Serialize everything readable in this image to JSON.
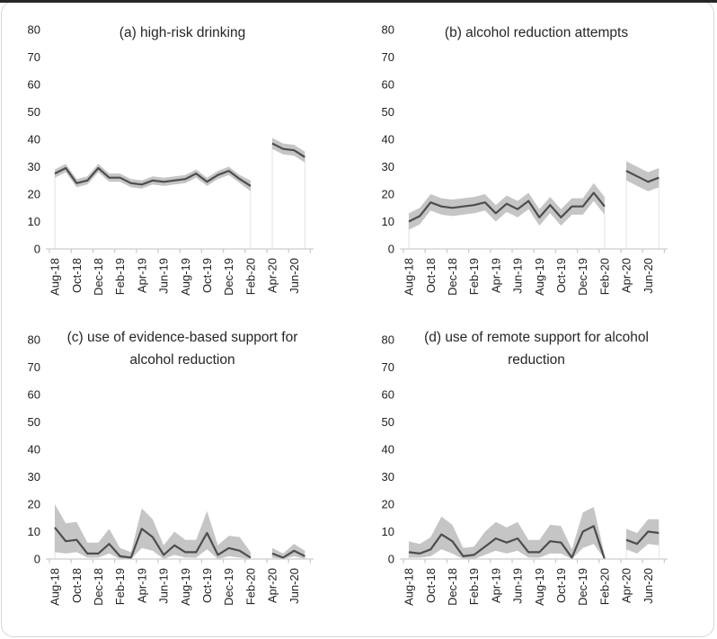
{
  "page": {
    "background": "#ffffff",
    "top_strip_color": "#262626",
    "card_border_color": "#d6d6d6",
    "line_color": "#4d4d4d",
    "band_color": "#c5c5c5",
    "axis_color": "#cccccc",
    "dropline_color": "#e4e4e4"
  },
  "chart_data": [
    {
      "id": "a",
      "type": "line",
      "title": "(a) high-risk drinking",
      "title_lines": [
        "(a) high-risk drinking"
      ],
      "ylim": [
        0,
        80
      ],
      "yticks": [
        0,
        10,
        20,
        30,
        40,
        50,
        60,
        70,
        80
      ],
      "x_tick_labels": [
        "Aug-18",
        "Oct-18",
        "Dec-18",
        "Feb-19",
        "Apr-19",
        "Jun-19",
        "Aug-19",
        "Oct-19",
        "Dec-19",
        "Feb-20",
        "Apr-20",
        "Jun-20"
      ],
      "months": [
        "Aug-18",
        "Sep-18",
        "Oct-18",
        "Nov-18",
        "Dec-18",
        "Jan-19",
        "Feb-19",
        "Mar-19",
        "Apr-19",
        "May-19",
        "Jun-19",
        "Jul-19",
        "Aug-19",
        "Sep-19",
        "Oct-19",
        "Nov-19",
        "Dec-19",
        "Jan-20",
        "Feb-20",
        "Mar-20",
        "Apr-20",
        "May-20",
        "Jun-20",
        "Jul-20"
      ],
      "values": [
        27.5,
        29.5,
        24,
        25,
        29.5,
        26,
        26,
        24,
        23.5,
        25,
        24.5,
        25,
        25.5,
        27.5,
        24.5,
        27,
        28.5,
        25.5,
        23,
        null,
        38.5,
        36.5,
        36,
        33.5
      ],
      "upper": [
        29,
        31,
        25.5,
        26.5,
        31,
        27.5,
        27.5,
        25.5,
        25,
        26.5,
        26,
        26.5,
        27,
        29,
        26,
        28.5,
        30,
        27,
        25,
        null,
        40.5,
        38.5,
        38,
        35.5
      ],
      "lower": [
        26,
        28,
        22.5,
        23.5,
        28,
        24.5,
        24.5,
        22.5,
        22,
        23.5,
        23,
        23.5,
        24,
        26,
        23,
        25.5,
        27,
        24,
        21,
        null,
        36.5,
        34.5,
        34,
        31.5
      ],
      "legend": "none",
      "grid": false
    },
    {
      "id": "b",
      "type": "line",
      "title": "(b) alcohol reduction attempts",
      "title_lines": [
        "(b) alcohol reduction attempts"
      ],
      "ylim": [
        0,
        80
      ],
      "yticks": [
        0,
        10,
        20,
        30,
        40,
        50,
        60,
        70,
        80
      ],
      "x_tick_labels": [
        "Aug-18",
        "Oct-18",
        "Dec-18",
        "Feb-19",
        "Apr-19",
        "Jun-19",
        "Aug-19",
        "Oct-19",
        "Dec-19",
        "Feb-20",
        "Apr-20",
        "Jun-20"
      ],
      "months": [
        "Aug-18",
        "Sep-18",
        "Oct-18",
        "Nov-18",
        "Dec-18",
        "Jan-19",
        "Feb-19",
        "Mar-19",
        "Apr-19",
        "May-19",
        "Jun-19",
        "Jul-19",
        "Aug-19",
        "Sep-19",
        "Oct-19",
        "Nov-19",
        "Dec-19",
        "Jan-20",
        "Feb-20",
        "Mar-20",
        "Apr-20",
        "May-20",
        "Jun-20",
        "Jul-20"
      ],
      "values": [
        10,
        12,
        17,
        15.5,
        15,
        15.5,
        16,
        17,
        13,
        16.5,
        14.5,
        17.5,
        11.5,
        16,
        11.5,
        15.5,
        15.5,
        20.5,
        15.5,
        null,
        28.5,
        26.5,
        24.5,
        26
      ],
      "upper": [
        13,
        15,
        20,
        18.5,
        18,
        18.5,
        19,
        20,
        16,
        19.5,
        17.5,
        20.5,
        14.5,
        19,
        14.5,
        18.5,
        18.5,
        24,
        19,
        null,
        32,
        30,
        28,
        29.5
      ],
      "lower": [
        7,
        9,
        14,
        12.5,
        12,
        12.5,
        13,
        14,
        10,
        13.5,
        11.5,
        14.5,
        8.5,
        13,
        8.5,
        12.5,
        12.5,
        17.5,
        12.5,
        null,
        25,
        23,
        21,
        22.5
      ],
      "legend": "none",
      "grid": false
    },
    {
      "id": "c",
      "type": "line",
      "title": "(c) use of evidence-based support for alcohol reduction",
      "title_lines": [
        "(c) use of evidence-based support for",
        "alcohol reduction"
      ],
      "ylim": [
        0,
        80
      ],
      "yticks": [
        0,
        10,
        20,
        30,
        40,
        50,
        60,
        70,
        80
      ],
      "x_tick_labels": [
        "Aug-18",
        "Oct-18",
        "Dec-18",
        "Feb-19",
        "Apr-19",
        "Jun-19",
        "Aug-19",
        "Oct-19",
        "Dec-19",
        "Feb-20",
        "Apr-20",
        "Jun-20"
      ],
      "months": [
        "Aug-18",
        "Sep-18",
        "Oct-18",
        "Nov-18",
        "Dec-18",
        "Jan-19",
        "Feb-19",
        "Mar-19",
        "Apr-19",
        "May-19",
        "Jun-19",
        "Jul-19",
        "Aug-19",
        "Sep-19",
        "Oct-19",
        "Nov-19",
        "Dec-19",
        "Jan-20",
        "Feb-20",
        "Mar-20",
        "Apr-20",
        "May-20",
        "Jun-20",
        "Jul-20"
      ],
      "values": [
        11.5,
        6.5,
        7,
        2,
        2,
        5.5,
        1,
        0.5,
        11,
        8,
        1.5,
        5,
        2.5,
        2.5,
        9.5,
        1.5,
        4,
        3,
        0.5,
        null,
        2,
        0.5,
        3,
        1
      ],
      "upper": [
        20,
        13,
        13.5,
        6,
        6,
        11,
        4,
        2.5,
        18.5,
        14.5,
        5,
        10,
        7,
        7,
        17.5,
        5,
        8.5,
        8,
        2.5,
        null,
        4,
        2,
        5.5,
        3
      ],
      "lower": [
        2.5,
        2,
        2.5,
        0.5,
        0.5,
        2,
        0,
        0,
        4,
        3,
        0,
        1.5,
        0.5,
        0.5,
        3.5,
        0,
        1,
        0.5,
        0,
        null,
        0.5,
        0,
        1,
        0
      ],
      "legend": "none",
      "grid": false
    },
    {
      "id": "d",
      "type": "line",
      "title": "(d) use of remote support for alcohol reduction",
      "title_lines": [
        "(d) use of remote support for alcohol",
        "reduction"
      ],
      "ylim": [
        0,
        80
      ],
      "yticks": [
        0,
        10,
        20,
        30,
        40,
        50,
        60,
        70,
        80
      ],
      "x_tick_labels": [
        "Aug-18",
        "Oct-18",
        "Dec-18",
        "Feb-19",
        "Apr-19",
        "Jun-19",
        "Aug-19",
        "Oct-19",
        "Dec-19",
        "Feb-20",
        "Apr-20",
        "Jun-20"
      ],
      "months": [
        "Aug-18",
        "Sep-18",
        "Oct-18",
        "Nov-18",
        "Dec-18",
        "Jan-19",
        "Feb-19",
        "Mar-19",
        "Apr-19",
        "May-19",
        "Jun-19",
        "Jul-19",
        "Aug-19",
        "Sep-19",
        "Oct-19",
        "Nov-19",
        "Dec-19",
        "Jan-20",
        "Feb-20",
        "Mar-20",
        "Apr-20",
        "May-20",
        "Jun-20",
        "Jul-20"
      ],
      "values": [
        2.5,
        2,
        3.5,
        9,
        6.5,
        1,
        1.5,
        4.5,
        7.5,
        6,
        7.5,
        2.5,
        2.5,
        6.5,
        6,
        0.5,
        10,
        12,
        0,
        null,
        7,
        5.5,
        10,
        9.5
      ],
      "upper": [
        6.5,
        5.5,
        8,
        15.5,
        12.5,
        4,
        4.5,
        10,
        13.5,
        11.5,
        13.5,
        7,
        7,
        12.5,
        12,
        3.5,
        17,
        19,
        1.5,
        null,
        11,
        9.5,
        14.5,
        14.5
      ],
      "lower": [
        0.5,
        0.5,
        1,
        3.5,
        2,
        0,
        0,
        1.5,
        3,
        2,
        3,
        0.5,
        0.5,
        2,
        2,
        0,
        4,
        5.5,
        0,
        null,
        3.5,
        2,
        5.5,
        5
      ],
      "legend": "none",
      "grid": false
    }
  ]
}
